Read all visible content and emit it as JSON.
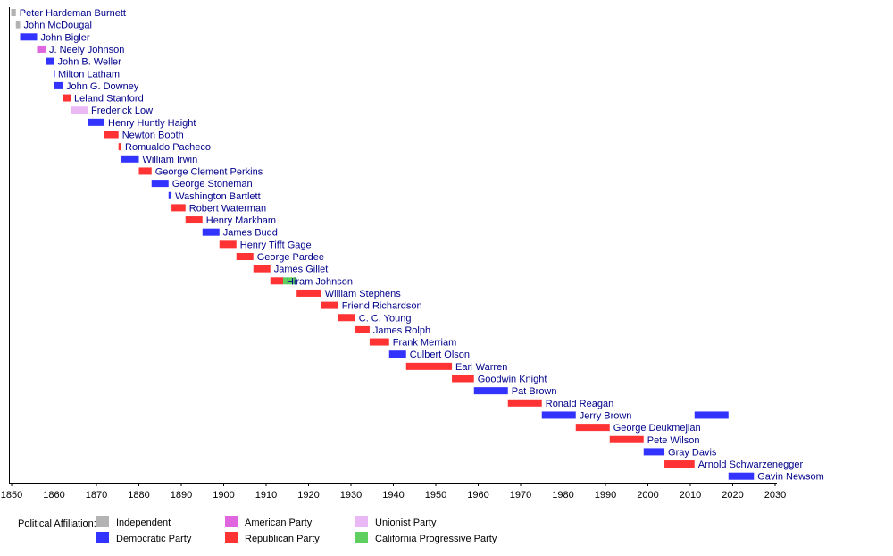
{
  "chart_data": {
    "type": "timeline",
    "xlim": [
      1850,
      2030
    ],
    "x_ticks": [
      1850,
      1860,
      1870,
      1880,
      1890,
      1900,
      1910,
      1920,
      1930,
      1940,
      1950,
      1960,
      1970,
      1980,
      1990,
      2000,
      2010,
      2020,
      2030
    ],
    "grid": false,
    "legend_title": "Political Affiliation:",
    "legend_position": "bottom-left",
    "parties": [
      {
        "key": "independent",
        "name": "Independent",
        "color": "#b3b3b3"
      },
      {
        "key": "democratic",
        "name": "Democratic Party",
        "color": "#3333ff"
      },
      {
        "key": "american",
        "name": "American Party",
        "color": "#e066e0"
      },
      {
        "key": "republican",
        "name": "Republican Party",
        "color": "#ff3333"
      },
      {
        "key": "unionist",
        "name": "Unionist Party",
        "color": "#e9b8f5"
      },
      {
        "key": "progressive",
        "name": "California Progressive Party",
        "color": "#5fcf5f"
      }
    ],
    "governors": [
      {
        "name": "Peter Hardeman Burnett",
        "segments": [
          {
            "start": 1849.9,
            "end": 1851.0,
            "party": "independent"
          }
        ]
      },
      {
        "name": "John McDougal",
        "segments": [
          {
            "start": 1851.0,
            "end": 1852.0,
            "party": "independent"
          }
        ]
      },
      {
        "name": "John Bigler",
        "segments": [
          {
            "start": 1852.0,
            "end": 1856.0,
            "party": "democratic"
          }
        ]
      },
      {
        "name": "J. Neely Johnson",
        "segments": [
          {
            "start": 1856.0,
            "end": 1858.0,
            "party": "american"
          }
        ]
      },
      {
        "name": "John B. Weller",
        "segments": [
          {
            "start": 1858.0,
            "end": 1860.0,
            "party": "democratic"
          }
        ]
      },
      {
        "name": "Milton Latham",
        "segments": [
          {
            "start": 1860.0,
            "end": 1860.1,
            "party": "democratic"
          }
        ]
      },
      {
        "name": "John G. Downey",
        "segments": [
          {
            "start": 1860.1,
            "end": 1862.0,
            "party": "democratic"
          }
        ]
      },
      {
        "name": "Leland Stanford",
        "segments": [
          {
            "start": 1862.0,
            "end": 1863.9,
            "party": "republican"
          }
        ]
      },
      {
        "name": "Frederick Low",
        "segments": [
          {
            "start": 1863.9,
            "end": 1867.9,
            "party": "unionist"
          }
        ]
      },
      {
        "name": "Henry Huntly Haight",
        "segments": [
          {
            "start": 1867.9,
            "end": 1871.9,
            "party": "democratic"
          }
        ]
      },
      {
        "name": "Newton Booth",
        "segments": [
          {
            "start": 1871.9,
            "end": 1875.2,
            "party": "republican"
          }
        ]
      },
      {
        "name": "Romualdo Pacheco",
        "segments": [
          {
            "start": 1875.2,
            "end": 1875.9,
            "party": "republican"
          }
        ]
      },
      {
        "name": "William Irwin",
        "segments": [
          {
            "start": 1875.9,
            "end": 1880.0,
            "party": "democratic"
          }
        ]
      },
      {
        "name": "George Clement Perkins",
        "segments": [
          {
            "start": 1880.0,
            "end": 1883.0,
            "party": "republican"
          }
        ]
      },
      {
        "name": "George Stoneman",
        "segments": [
          {
            "start": 1883.0,
            "end": 1887.0,
            "party": "democratic"
          }
        ]
      },
      {
        "name": "Washington Bartlett",
        "segments": [
          {
            "start": 1887.0,
            "end": 1887.7,
            "party": "democratic"
          }
        ]
      },
      {
        "name": "Robert Waterman",
        "segments": [
          {
            "start": 1887.7,
            "end": 1891.0,
            "party": "republican"
          }
        ]
      },
      {
        "name": "Henry Markham",
        "segments": [
          {
            "start": 1891.0,
            "end": 1895.0,
            "party": "republican"
          }
        ]
      },
      {
        "name": "James Budd",
        "segments": [
          {
            "start": 1895.0,
            "end": 1899.0,
            "party": "democratic"
          }
        ]
      },
      {
        "name": "Henry Tifft Gage",
        "segments": [
          {
            "start": 1899.0,
            "end": 1903.0,
            "party": "republican"
          }
        ]
      },
      {
        "name": "George Pardee",
        "segments": [
          {
            "start": 1903.0,
            "end": 1907.0,
            "party": "republican"
          }
        ]
      },
      {
        "name": "James Gillet",
        "segments": [
          {
            "start": 1907.0,
            "end": 1911.0,
            "party": "republican"
          }
        ]
      },
      {
        "name": "Hiram Johnson",
        "segments": [
          {
            "start": 1911.0,
            "end": 1914.0,
            "party": "republican"
          },
          {
            "start": 1914.0,
            "end": 1917.2,
            "party": "progressive"
          }
        ]
      },
      {
        "name": "William Stephens",
        "segments": [
          {
            "start": 1917.2,
            "end": 1923.0,
            "party": "republican"
          }
        ]
      },
      {
        "name": "Friend Richardson",
        "segments": [
          {
            "start": 1923.0,
            "end": 1927.0,
            "party": "republican"
          }
        ]
      },
      {
        "name": "C. C. Young",
        "segments": [
          {
            "start": 1927.0,
            "end": 1931.0,
            "party": "republican"
          }
        ]
      },
      {
        "name": "James Rolph",
        "segments": [
          {
            "start": 1931.0,
            "end": 1934.4,
            "party": "republican"
          }
        ]
      },
      {
        "name": "Frank Merriam",
        "segments": [
          {
            "start": 1934.4,
            "end": 1939.0,
            "party": "republican"
          }
        ]
      },
      {
        "name": "Culbert Olson",
        "segments": [
          {
            "start": 1939.0,
            "end": 1943.0,
            "party": "democratic"
          }
        ]
      },
      {
        "name": "Earl Warren",
        "segments": [
          {
            "start": 1943.0,
            "end": 1953.8,
            "party": "republican"
          }
        ]
      },
      {
        "name": "Goodwin Knight",
        "segments": [
          {
            "start": 1953.8,
            "end": 1959.0,
            "party": "republican"
          }
        ]
      },
      {
        "name": "Pat Brown",
        "segments": [
          {
            "start": 1959.0,
            "end": 1967.0,
            "party": "democratic"
          }
        ]
      },
      {
        "name": "Ronald Reagan",
        "segments": [
          {
            "start": 1967.0,
            "end": 1975.0,
            "party": "republican"
          }
        ]
      },
      {
        "name": "Jerry Brown",
        "segments": [
          {
            "start": 1975.0,
            "end": 1983.0,
            "party": "democratic"
          },
          {
            "start": 2011.0,
            "end": 2019.0,
            "party": "democratic"
          }
        ]
      },
      {
        "name": "George Deukmejian",
        "segments": [
          {
            "start": 1983.0,
            "end": 1991.0,
            "party": "republican"
          }
        ]
      },
      {
        "name": "Pete Wilson",
        "segments": [
          {
            "start": 1991.0,
            "end": 1999.0,
            "party": "republican"
          }
        ]
      },
      {
        "name": "Gray Davis",
        "segments": [
          {
            "start": 1999.0,
            "end": 2003.9,
            "party": "democratic"
          }
        ]
      },
      {
        "name": "Arnold Schwarzenegger",
        "segments": [
          {
            "start": 2003.9,
            "end": 2011.0,
            "party": "republican"
          }
        ]
      },
      {
        "name": "Gavin Newsom",
        "segments": [
          {
            "start": 2019.0,
            "end": 2025.0,
            "party": "democratic"
          }
        ]
      }
    ]
  }
}
